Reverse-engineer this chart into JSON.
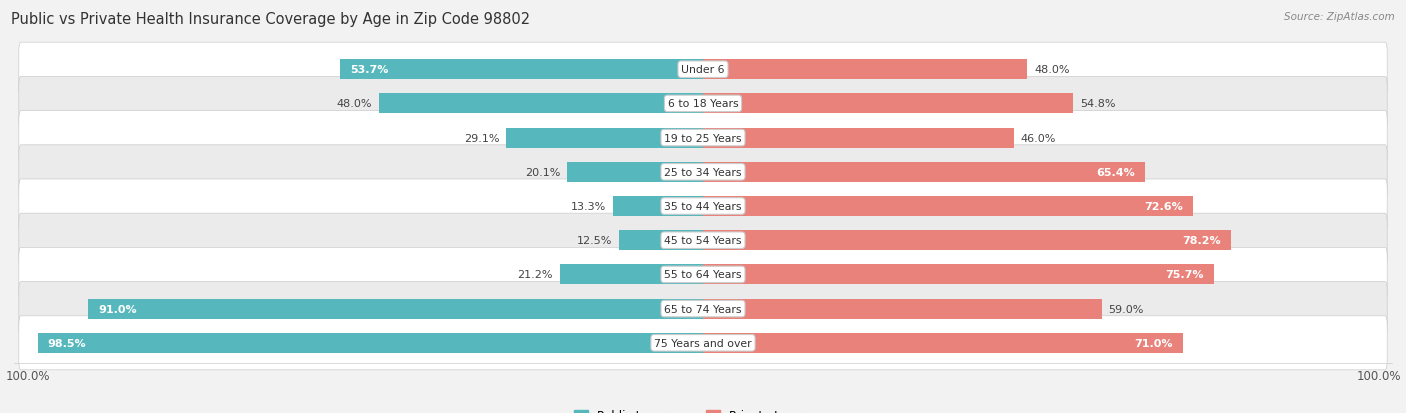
{
  "title": "Public vs Private Health Insurance Coverage by Age in Zip Code 98802",
  "source": "Source: ZipAtlas.com",
  "categories": [
    "Under 6",
    "6 to 18 Years",
    "19 to 25 Years",
    "25 to 34 Years",
    "35 to 44 Years",
    "45 to 54 Years",
    "55 to 64 Years",
    "65 to 74 Years",
    "75 Years and over"
  ],
  "public_values": [
    53.7,
    48.0,
    29.1,
    20.1,
    13.3,
    12.5,
    21.2,
    91.0,
    98.5
  ],
  "private_values": [
    48.0,
    54.8,
    46.0,
    65.4,
    72.6,
    78.2,
    75.7,
    59.0,
    71.0
  ],
  "public_color": "#56b8bc",
  "private_color": "#e8827a",
  "private_color_light": "#f2b8b0",
  "bg_color": "#f2f2f2",
  "row_even_color": "#ffffff",
  "row_odd_color": "#ebebeb",
  "title_color": "#333333",
  "label_outside_color": "#444444",
  "bar_height": 0.58,
  "max_value": 100.0,
  "pub_label_inside_threshold": 50.0,
  "priv_label_inside_threshold": 65.0
}
